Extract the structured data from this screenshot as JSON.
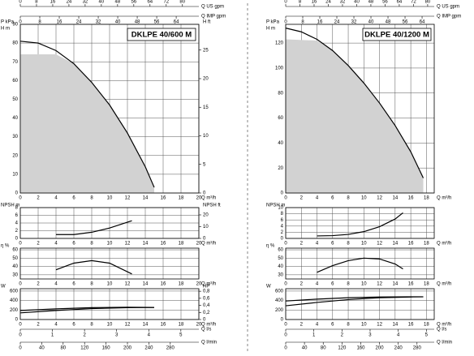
{
  "chart_data": [
    {
      "type": "line",
      "title": "DKLPE 40/600 M",
      "xlim": [
        0,
        20
      ],
      "xticks": [
        0,
        2,
        4,
        6,
        8,
        10,
        12,
        14,
        16,
        18,
        20
      ],
      "x_label": "Q m³/h",
      "grid": true,
      "top_axes": [
        {
          "label": "Q US gpm",
          "xlim": [
            0,
            88.1
          ],
          "xticks": [
            0,
            8,
            16,
            24,
            32,
            40,
            48,
            56,
            64,
            72,
            80
          ]
        },
        {
          "label": "Q IMP gpm",
          "xlim": [
            0,
            73.3
          ],
          "xticks": [
            0,
            8,
            16,
            24,
            32,
            40,
            48,
            56,
            64
          ]
        }
      ],
      "bottom_axes": [
        {
          "label": "Q l/s",
          "xlim": [
            0,
            5.56
          ],
          "xticks": [
            0,
            1,
            2,
            3,
            4,
            5
          ]
        },
        {
          "label": "Q l/min",
          "xlim": [
            0,
            333.3
          ],
          "xticks": [
            0,
            40,
            80,
            120,
            160,
            200,
            240,
            280
          ]
        }
      ],
      "panels": [
        {
          "y_label": [
            "P kPa",
            "H m"
          ],
          "ylim": [
            0,
            90
          ],
          "yticks": [
            0,
            10,
            20,
            30,
            40,
            50,
            60,
            70,
            80,
            90
          ],
          "y2_label": "H ft",
          "y2lim": [
            0,
            29.5
          ],
          "y2ticks": [
            0,
            5,
            10,
            15,
            20,
            25
          ],
          "area": {
            "color": "#d2d2d2",
            "x": [
              0,
              4,
              6,
              8,
              10,
              12,
              14,
              15
            ],
            "values": [
              74,
              74,
              69,
              59,
              47,
              32,
              14,
              3
            ]
          },
          "series": [
            {
              "color": "#000000",
              "x": [
                0,
                2,
                4,
                6,
                8,
                10,
                12,
                14,
                15
              ],
              "values": [
                81,
                80,
                76,
                69,
                59,
                47,
                32,
                14,
                3
              ]
            }
          ]
        },
        {
          "y_label": [
            "NPSH m"
          ],
          "ylim": [
            0,
            8
          ],
          "yticks": [
            0,
            2,
            4,
            6,
            8
          ],
          "y2_label": "NPSH ft",
          "y2lim": [
            0,
            26.2
          ],
          "y2ticks": [
            0,
            10,
            20
          ],
          "series": [
            {
              "color": "#000000",
              "x": [
                4,
                6,
                8,
                10,
                12.5
              ],
              "values": [
                1,
                1,
                1.6,
                2.7,
                4.6
              ]
            }
          ]
        },
        {
          "y_label": [
            "η %"
          ],
          "ylim": [
            25,
            62
          ],
          "yticks": [
            30,
            40,
            50,
            60
          ],
          "series": [
            {
              "color": "#000000",
              "x": [
                4,
                6,
                8,
                10,
                12.5
              ],
              "values": [
                36,
                44,
                47,
                44,
                31
              ]
            }
          ]
        },
        {
          "y_label": [
            "W"
          ],
          "ylim": [
            0,
            650
          ],
          "yticks": [
            0,
            200,
            400,
            600
          ],
          "y2_label": "HP",
          "y2lim": [
            0,
            0.872
          ],
          "y2ticks": [
            0,
            {
              "value": 0.2,
              "label": "0,2"
            },
            {
              "value": 0.4,
              "label": "0,4"
            },
            {
              "value": 0.6,
              "label": "0,6"
            },
            {
              "value": 0.8,
              "label": "0,8"
            }
          ],
          "series": [
            {
              "color": "#000000",
              "x": [
                0,
                4,
                8,
                12,
                15
              ],
              "values": [
                190,
                225,
                250,
                260,
                255
              ]
            },
            {
              "color": "#000000",
              "x": [
                0,
                4,
                8,
                12,
                15
              ],
              "values": [
                140,
                190,
                230,
                250,
                255
              ]
            }
          ]
        }
      ]
    },
    {
      "type": "line",
      "title": "DKLPE 40/1200 M",
      "xlim": [
        0,
        19
      ],
      "xticks": [
        0,
        2,
        4,
        6,
        8,
        10,
        12,
        14,
        16,
        18
      ],
      "x_label": "Q m³/h",
      "grid": true,
      "top_axes": [
        {
          "label": "Q US gpm",
          "xlim": [
            0,
            83.7
          ],
          "xticks": [
            0,
            8,
            16,
            24,
            32,
            40,
            48,
            56,
            64,
            72,
            80
          ]
        },
        {
          "label": "Q IMP gpm",
          "xlim": [
            0,
            69.7
          ],
          "xticks": [
            0,
            8,
            16,
            24,
            32,
            40,
            48,
            56,
            64
          ]
        }
      ],
      "bottom_axes": [
        {
          "label": "Q l/s",
          "xlim": [
            0,
            5.28
          ],
          "xticks": [
            0,
            1,
            2,
            3,
            4,
            5
          ]
        },
        {
          "label": "Q l/min",
          "xlim": [
            0,
            316.7
          ],
          "xticks": [
            0,
            40,
            80,
            120,
            160,
            200,
            240,
            280
          ]
        }
      ],
      "panels": [
        {
          "y_label": [
            "P kPa",
            "H m"
          ],
          "ylim": [
            0,
            135
          ],
          "yticks": [
            0,
            20,
            40,
            60,
            80,
            100,
            120
          ],
          "area": {
            "color": "#d2d2d2",
            "x": [
              0,
              4,
              6,
              8,
              10,
              12,
              14,
              16,
              17.6
            ],
            "values": [
              123,
              122,
              114,
              102,
              88,
              72,
              54,
              33,
              12
            ]
          },
          "series": [
            {
              "color": "#000000",
              "x": [
                0,
                2,
                4,
                6,
                8,
                10,
                12,
                14,
                16,
                17.6
              ],
              "values": [
                132,
                129,
                123,
                114,
                102,
                88,
                72,
                54,
                33,
                12
              ]
            }
          ]
        },
        {
          "y_label": [
            "NPSH m"
          ],
          "ylim": [
            0,
            10
          ],
          "yticks": [
            0,
            2,
            4,
            6,
            8,
            10
          ],
          "series": [
            {
              "color": "#000000",
              "x": [
                4,
                6,
                8,
                10,
                12,
                14,
                15
              ],
              "values": [
                0.8,
                0.9,
                1.3,
                2.2,
                3.8,
                6.3,
                8.3
              ]
            }
          ]
        },
        {
          "y_label": [
            "η %"
          ],
          "ylim": [
            25,
            62
          ],
          "yticks": [
            30,
            40,
            50,
            60
          ],
          "series": [
            {
              "color": "#000000",
              "x": [
                4,
                6,
                8,
                10,
                12,
                14,
                15
              ],
              "values": [
                33,
                41,
                47,
                50,
                49,
                43,
                37
              ]
            }
          ]
        },
        {
          "y_label": [
            "W"
          ],
          "ylim": [
            0,
            650
          ],
          "yticks": [
            0,
            200,
            400,
            600
          ],
          "series": [
            {
              "color": "#000000",
              "x": [
                0,
                4,
                8,
                12,
                16,
                17.6
              ],
              "values": [
                390,
                430,
                460,
                475,
                480,
                480
              ]
            },
            {
              "color": "#000000",
              "x": [
                0,
                4,
                8,
                12,
                16,
                17.6
              ],
              "values": [
                290,
                360,
                420,
                460,
                475,
                478
              ]
            }
          ]
        }
      ]
    }
  ]
}
